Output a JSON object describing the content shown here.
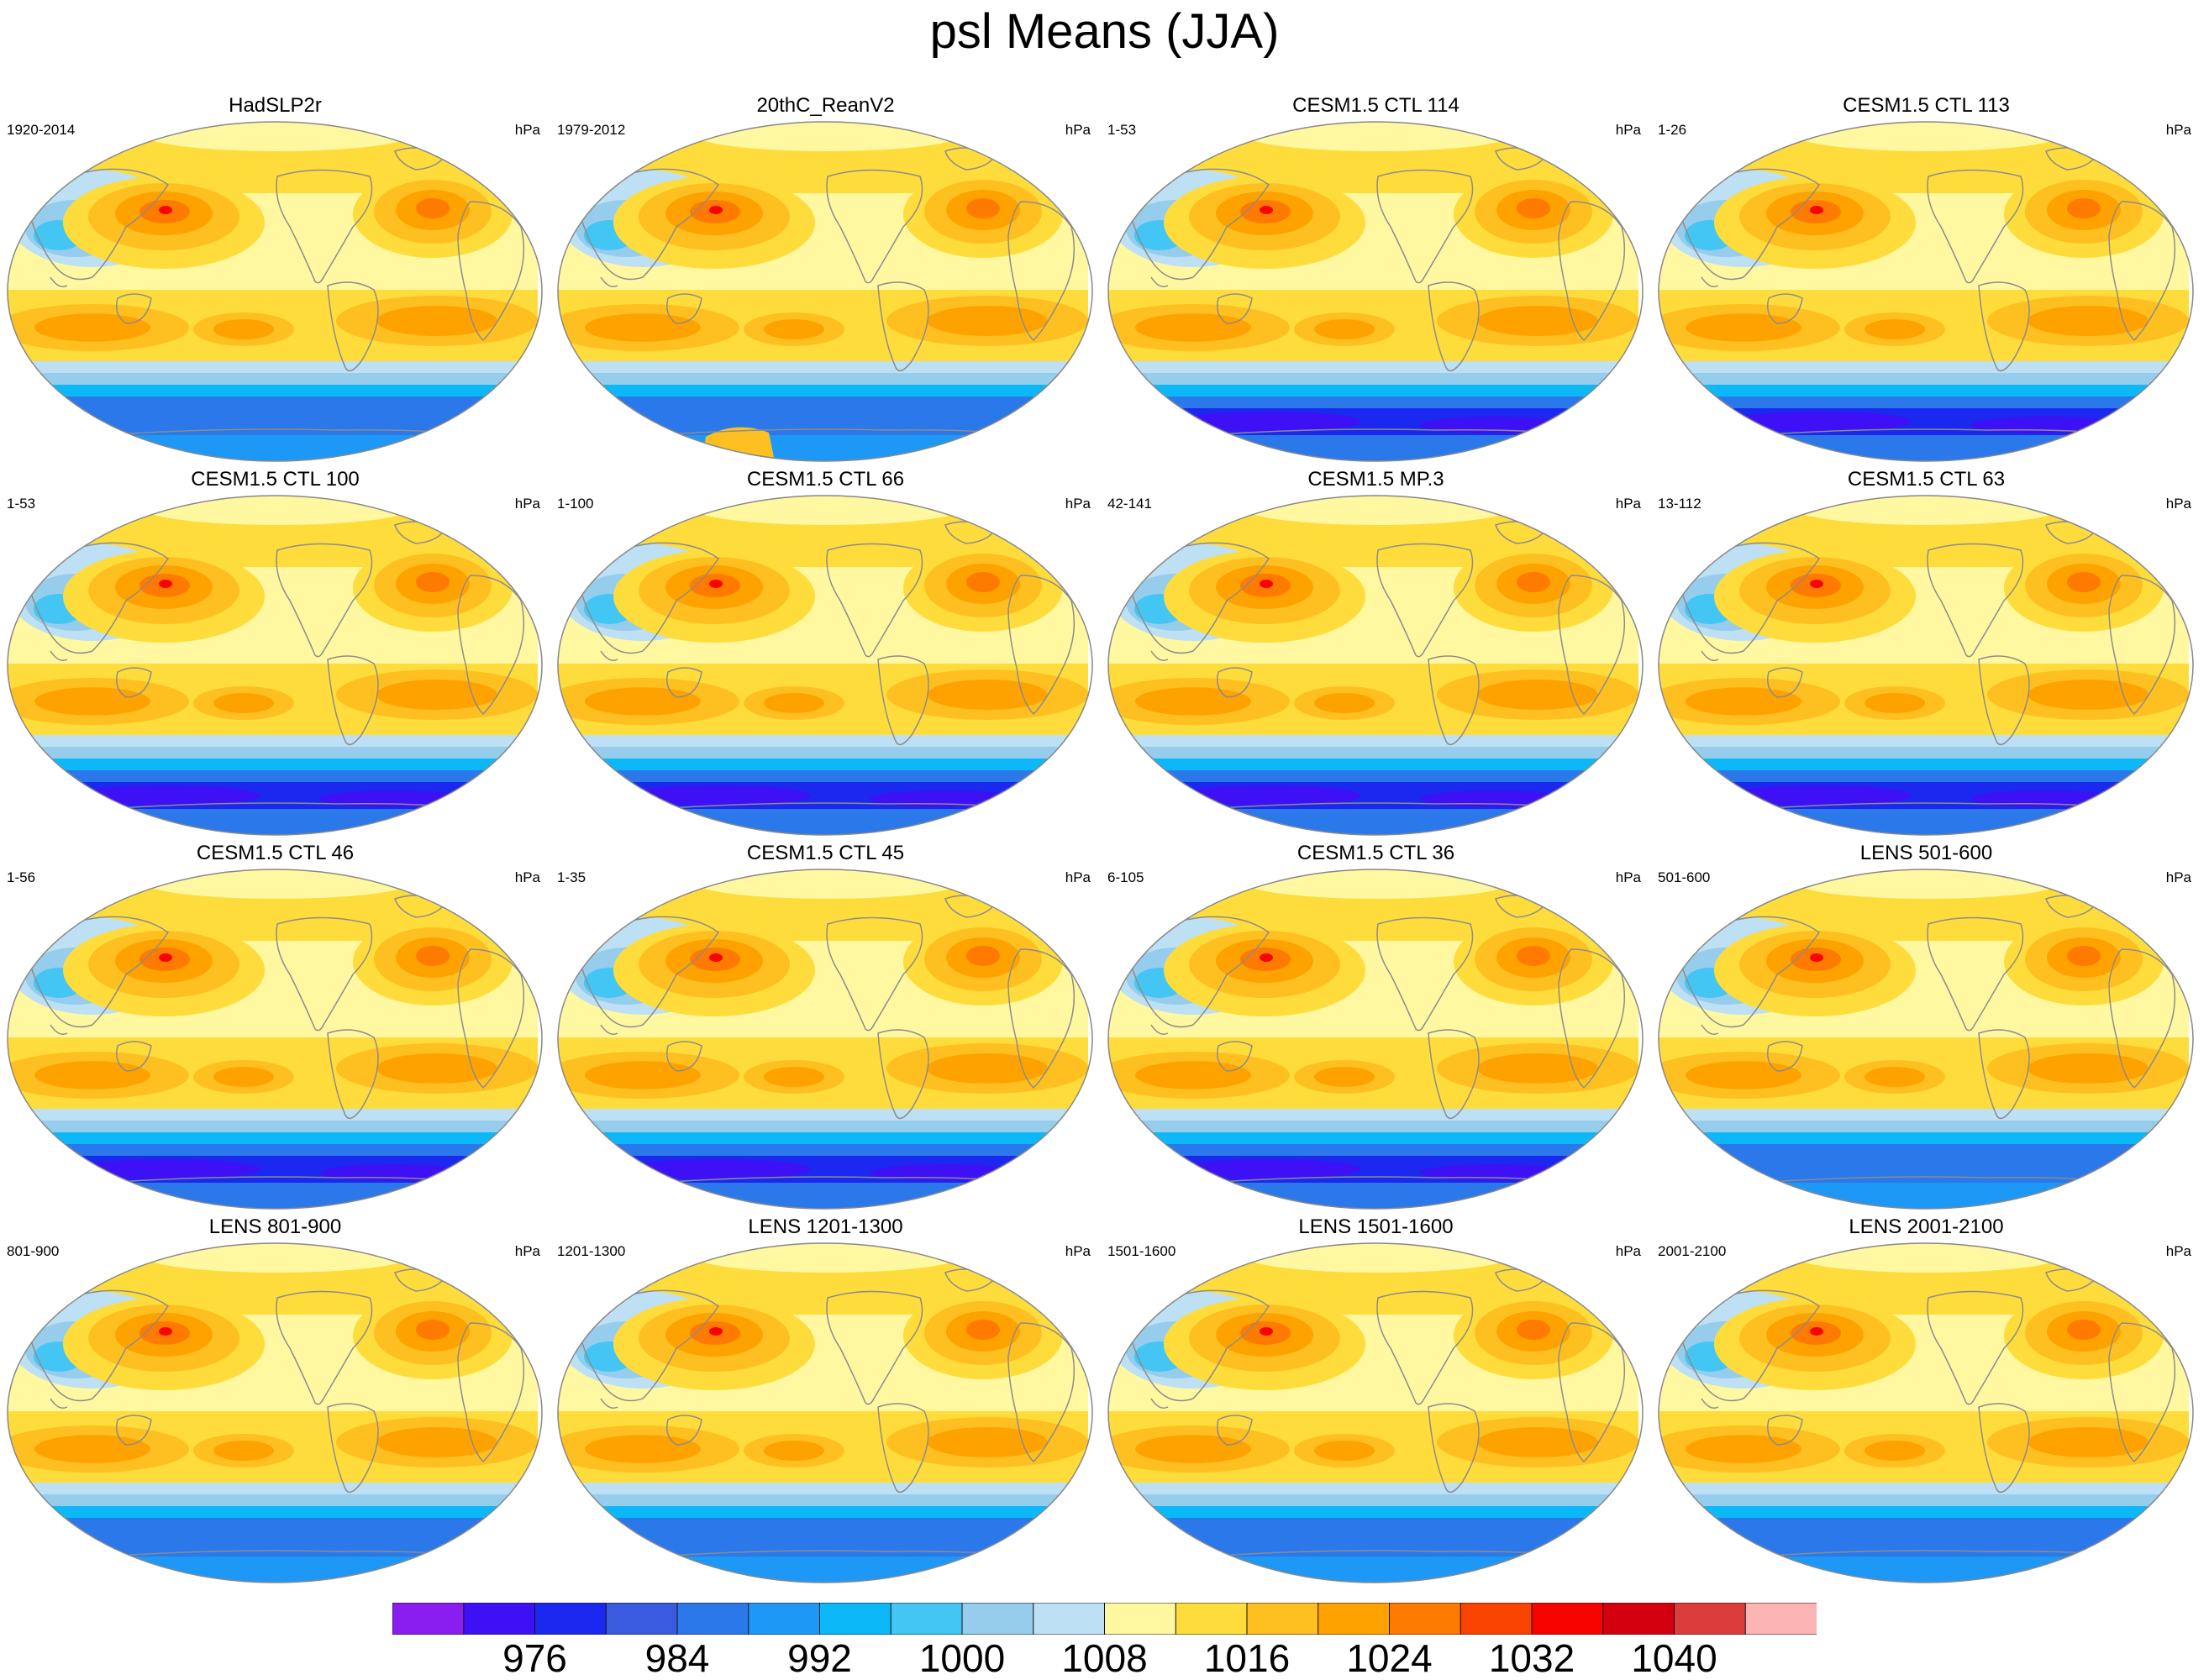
{
  "title": "psl Means (JJA)",
  "unit": "hPa",
  "colors": {
    "levels": [
      "#8a1ef0",
      "#3e10f5",
      "#1a28f0",
      "#3a5ae0",
      "#2a78ea",
      "#1e98f7",
      "#0cb8f8",
      "#44c6f5",
      "#96cdec",
      "#bde0f5",
      "#fff8a0",
      "#fedc3c",
      "#fec020",
      "#fea200",
      "#fe7a00",
      "#f84400",
      "#f80400",
      "#d40010",
      "#dc3c3c",
      "#fcb4b4"
    ],
    "ocean_tropics": "#fff5a8",
    "continent_line": "#8c8c8c"
  },
  "colorbar": {
    "labels": [
      "976",
      "984",
      "992",
      "1000",
      "1008",
      "1016",
      "1024",
      "1032",
      "1040"
    ]
  },
  "panels": [
    {
      "title": "HadSLP2r",
      "years": "1920-2014",
      "unit": "hPa",
      "south": "ring",
      "hole": false
    },
    {
      "title": "20thC_ReanV2",
      "years": "1979-2012",
      "unit": "hPa",
      "south": "ring",
      "hole": true
    },
    {
      "title": "CESM1.5 CTL 114",
      "years": "1-53",
      "unit": "hPa",
      "south": "deep",
      "hole": false
    },
    {
      "title": "CESM1.5 CTL 113",
      "years": "1-26",
      "unit": "hPa",
      "south": "deep",
      "hole": false
    },
    {
      "title": "CESM1.5 CTL 100",
      "years": "1-53",
      "unit": "hPa",
      "south": "deep",
      "hole": false
    },
    {
      "title": "CESM1.5 CTL 66",
      "years": "1-100",
      "unit": "hPa",
      "south": "deep",
      "hole": false
    },
    {
      "title": "CESM1.5 MP.3",
      "years": "42-141",
      "unit": "hPa",
      "south": "deep",
      "hole": false
    },
    {
      "title": "CESM1.5 CTL 63",
      "years": "13-112",
      "unit": "hPa",
      "south": "deep",
      "hole": false
    },
    {
      "title": "CESM1.5 CTL 46",
      "years": "1-56",
      "unit": "hPa",
      "south": "deep",
      "hole": false
    },
    {
      "title": "CESM1.5 CTL 45",
      "years": "1-35",
      "unit": "hPa",
      "south": "deep",
      "hole": false
    },
    {
      "title": "CESM1.5 CTL 36",
      "years": "6-105",
      "unit": "hPa",
      "south": "deep",
      "hole": false
    },
    {
      "title": "LENS 501-600",
      "years": "501-600",
      "unit": "hPa",
      "south": "ring",
      "hole": false
    },
    {
      "title": "LENS 801-900",
      "years": "801-900",
      "unit": "hPa",
      "south": "ring",
      "hole": false
    },
    {
      "title": "LENS 1201-1300",
      "years": "1201-1300",
      "unit": "hPa",
      "south": "ring",
      "hole": false
    },
    {
      "title": "LENS 1501-1600",
      "years": "1501-1600",
      "unit": "hPa",
      "south": "ring",
      "hole": false
    },
    {
      "title": "LENS 2001-2100",
      "years": "2001-2100",
      "unit": "hPa",
      "south": "ring",
      "hole": false
    }
  ]
}
